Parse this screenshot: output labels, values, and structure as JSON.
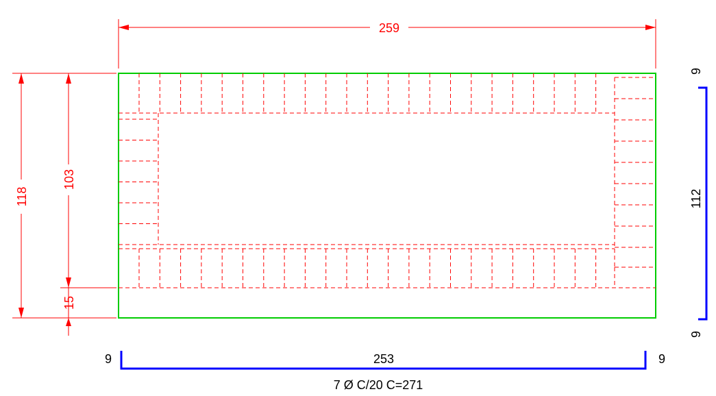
{
  "dimensions": {
    "top_width": "259",
    "left_outer_height": "118",
    "left_inner_height": "103",
    "left_bottom_offset": "15"
  },
  "bottom_bar": {
    "left_hook": "9",
    "length": "253",
    "right_hook": "9",
    "spec": "7 Ø C/20 C=271"
  },
  "right_bar": {
    "top_hook": "9",
    "length": "112",
    "bottom_hook": "9"
  },
  "colors": {
    "outline": "#00cc00",
    "dimension": "#ff0000",
    "rebar": "#0000ff",
    "text": "#000000"
  }
}
